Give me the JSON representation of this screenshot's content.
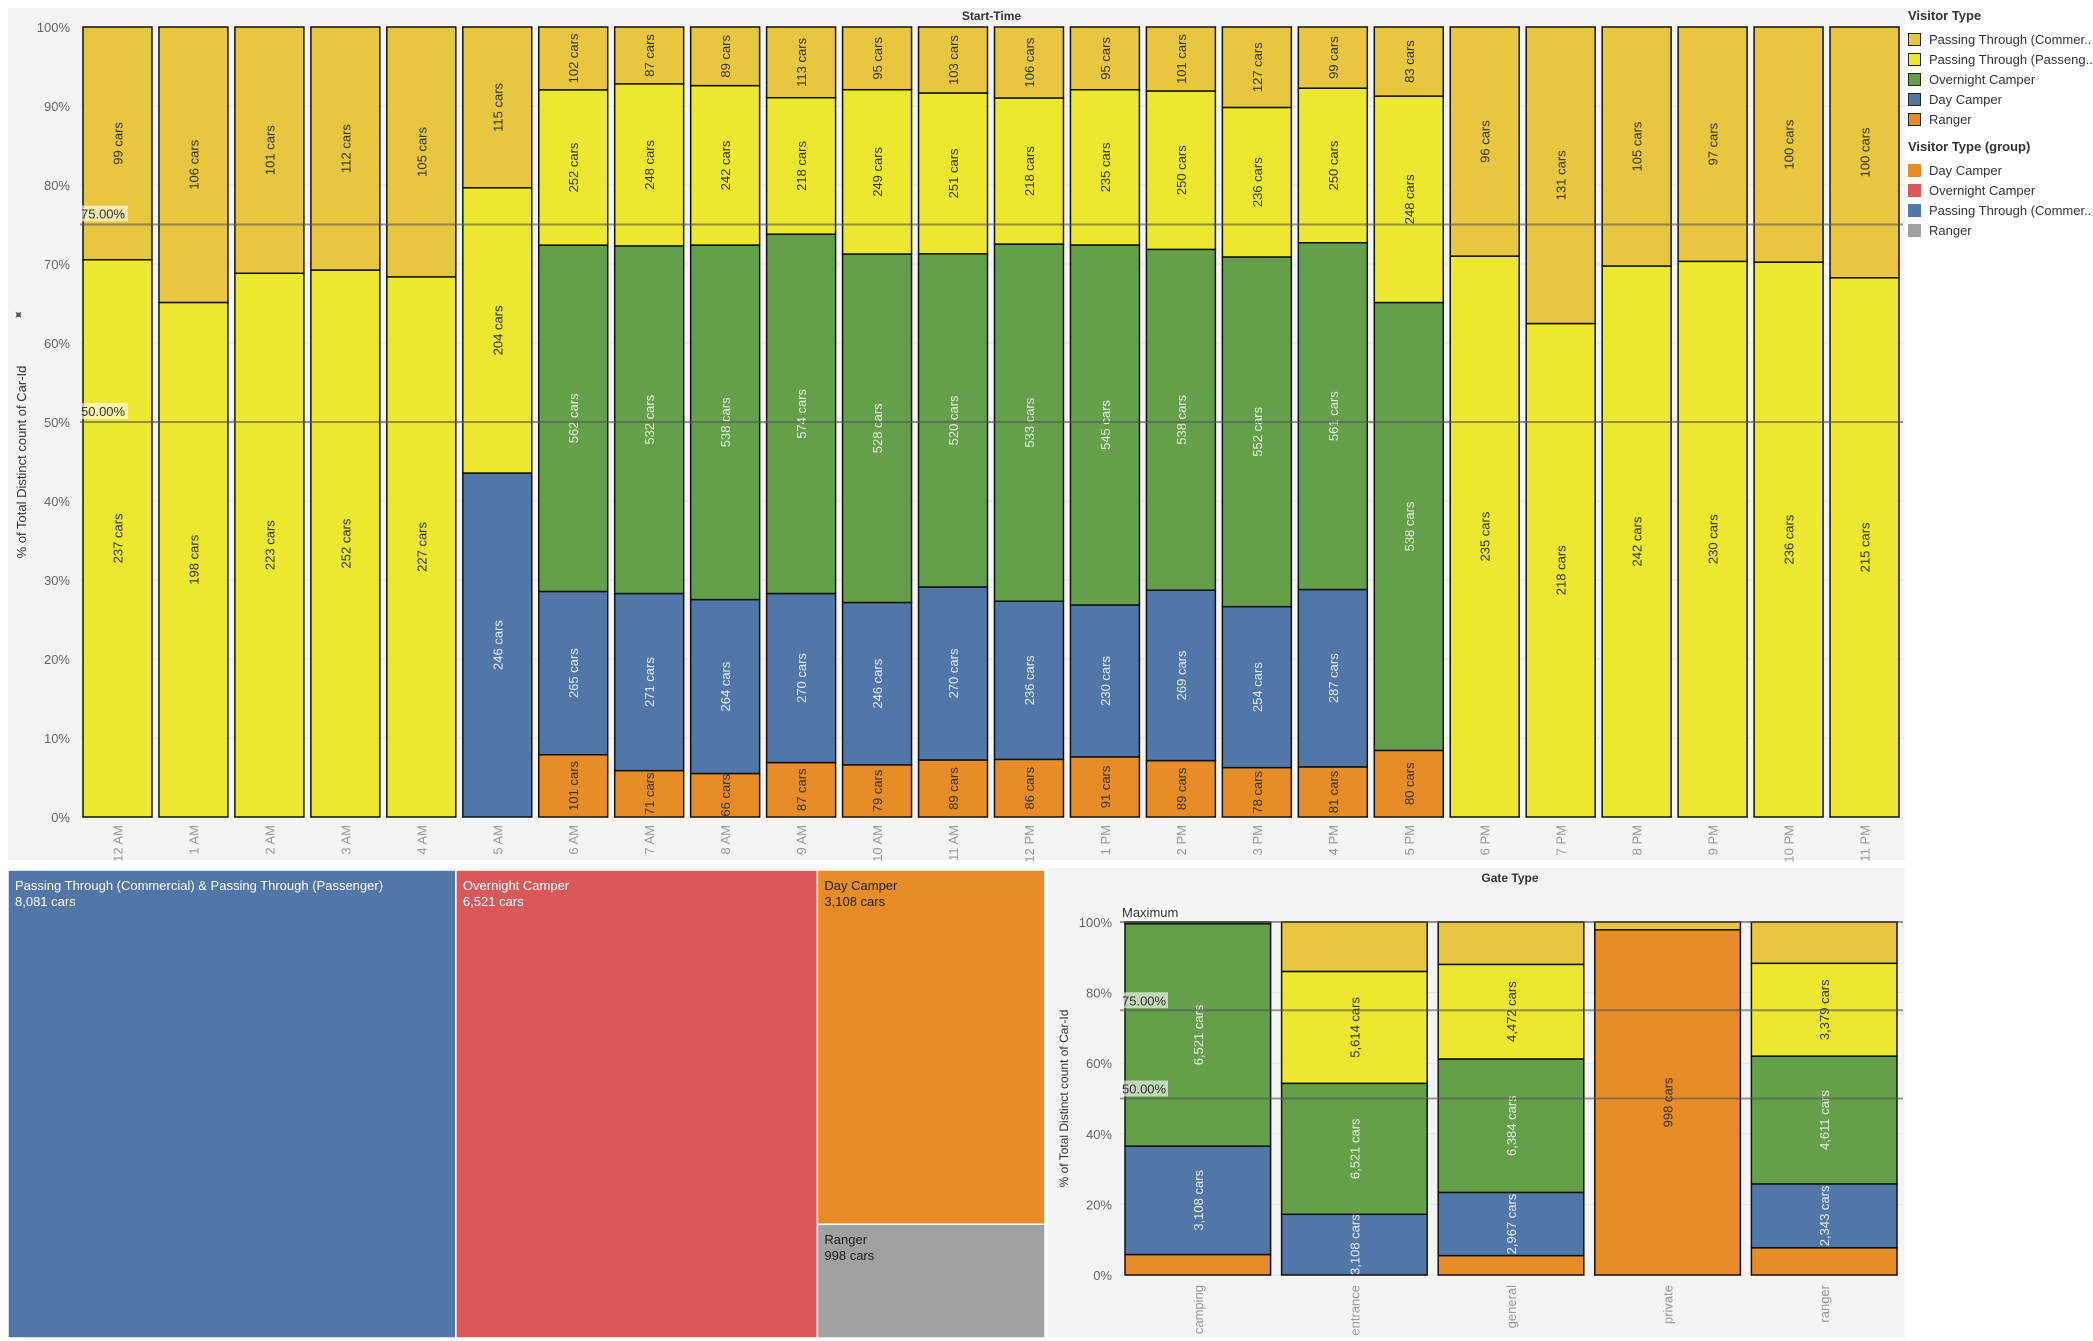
{
  "colors": {
    "commercial": "#e8c63f",
    "passenger": "#ece72f",
    "overnight": "#64a04a",
    "day": "#5177a8",
    "ranger": "#e78c27",
    "group_day": "#e78c27",
    "group_overnight": "#d9595b",
    "group_passing": "#5177a8",
    "group_ranger": "#a0a0a0"
  },
  "legend": {
    "visitor_type": {
      "title": "Visitor Type",
      "items": [
        {
          "label": "Passing Through (Commer..",
          "color": "#e8c63f"
        },
        {
          "label": "Passing Through (Passeng..",
          "color": "#ece72f"
        },
        {
          "label": "Overnight Camper",
          "color": "#64a04a"
        },
        {
          "label": "Day Camper",
          "color": "#5177a8"
        },
        {
          "label": "Ranger",
          "color": "#e78c27"
        }
      ]
    },
    "visitor_type_group": {
      "title": "Visitor Type (group)",
      "items": [
        {
          "label": "Day Camper",
          "color": "#e78c27"
        },
        {
          "label": "Overnight Camper",
          "color": "#d9595b"
        },
        {
          "label": "Passing Through (Commer..",
          "color": "#5177a8"
        },
        {
          "label": "Ranger",
          "color": "#a0a0a0"
        }
      ]
    }
  },
  "chart_data": [
    {
      "type": "bar",
      "stacked": "percent",
      "title": "Start-Time",
      "ylabel": "% of Total Distinct count of Car-Id",
      "ylim": [
        0,
        100
      ],
      "yticks": [
        "0%",
        "10%",
        "20%",
        "30%",
        "40%",
        "50%",
        "60%",
        "70%",
        "80%",
        "90%",
        "100%"
      ],
      "reference_lines": [
        {
          "value": 75,
          "label": "75.00%"
        },
        {
          "value": 50,
          "label": "50.00%"
        }
      ],
      "label_suffix": " cars",
      "categories": [
        "12 AM",
        "1 AM",
        "2 AM",
        "3 AM",
        "4 AM",
        "5 AM",
        "6 AM",
        "7 AM",
        "8 AM",
        "9 AM",
        "10 AM",
        "11 AM",
        "12 PM",
        "1 PM",
        "2 PM",
        "3 PM",
        "4 PM",
        "5 PM",
        "6 PM",
        "7 PM",
        "8 PM",
        "9 PM",
        "10 PM",
        "11 PM"
      ],
      "series": [
        {
          "name": "Ranger",
          "key": "ranger",
          "values": [
            0,
            0,
            0,
            0,
            0,
            0,
            101,
            71,
            66,
            87,
            79,
            89,
            86,
            91,
            89,
            78,
            81,
            80,
            0,
            0,
            0,
            0,
            0,
            0
          ]
        },
        {
          "name": "Day Camper",
          "key": "day",
          "values": [
            0,
            0,
            0,
            0,
            0,
            246,
            265,
            271,
            264,
            270,
            246,
            270,
            236,
            230,
            269,
            254,
            287,
            0,
            0,
            0,
            0,
            0,
            0,
            0
          ]
        },
        {
          "name": "Overnight Camper",
          "key": "overnight",
          "values": [
            0,
            0,
            0,
            0,
            0,
            0,
            562,
            532,
            538,
            574,
            528,
            520,
            533,
            545,
            538,
            552,
            561,
            538,
            0,
            0,
            0,
            0,
            0,
            0
          ]
        },
        {
          "name": "Passing Through (Passenger)",
          "key": "passenger",
          "values": [
            237,
            198,
            223,
            252,
            227,
            204,
            252,
            248,
            242,
            218,
            249,
            251,
            218,
            235,
            250,
            236,
            250,
            248,
            235,
            218,
            242,
            230,
            236,
            215
          ]
        },
        {
          "name": "Passing Through (Commercial)",
          "key": "commercial",
          "values": [
            99,
            106,
            101,
            112,
            105,
            115,
            102,
            87,
            89,
            113,
            95,
            103,
            106,
            95,
            101,
            127,
            99,
            83,
            96,
            131,
            105,
            97,
            100,
            100
          ]
        }
      ]
    },
    {
      "type": "treemap",
      "items": [
        {
          "name": "Passing Through (Commercial) & Passing Through (Passenger)",
          "value": 8081,
          "label": "8,081 cars",
          "key": "group_passing"
        },
        {
          "name": "Overnight Camper",
          "value": 6521,
          "label": "6,521 cars",
          "key": "group_overnight"
        },
        {
          "name": "Day Camper",
          "value": 3108,
          "label": "3,108 cars",
          "key": "group_day"
        },
        {
          "name": "Ranger",
          "value": 998,
          "label": "998 cars",
          "key": "group_ranger"
        }
      ]
    },
    {
      "type": "bar",
      "stacked": "percent",
      "title": "Gate Type",
      "ylabel": "% of Total Distinct count of Car-Id",
      "ylim": [
        0,
        100
      ],
      "yticks": [
        "0%",
        "20%",
        "40%",
        "60%",
        "80%",
        "100%"
      ],
      "reference_lines": [
        {
          "value": 100,
          "label": "Maximum"
        },
        {
          "value": 75,
          "label": "75.00%"
        },
        {
          "value": 50,
          "label": "50.00%"
        }
      ],
      "categories": [
        "camping",
        "entrance",
        "general",
        "private",
        "ranger"
      ],
      "series": [
        {
          "name": "Ranger",
          "key": "ranger",
          "percent": [
            5.8,
            0,
            5.5,
            97.8,
            7.7
          ],
          "labels": [
            null,
            null,
            null,
            "998 cars",
            null
          ]
        },
        {
          "name": "Day Camper",
          "key": "day",
          "percent": [
            30.7,
            17.2,
            17.9,
            0,
            18.1
          ],
          "labels": [
            "3,108 cars",
            "3,108 cars",
            "2,967 cars",
            null,
            "2,343 cars"
          ]
        },
        {
          "name": "Overnight Camper",
          "key": "overnight",
          "percent": [
            63.0,
            37.1,
            37.8,
            0,
            36.2
          ],
          "labels": [
            "6,521 cars",
            "6,521 cars",
            "6,384 cars",
            null,
            "4,611 cars"
          ]
        },
        {
          "name": "Passing Through (Passenger)",
          "key": "passenger",
          "percent": [
            0,
            31.7,
            26.8,
            0,
            26.3
          ],
          "labels": [
            null,
            "5,614 cars",
            "4,472 cars",
            null,
            "3,379 cars"
          ]
        },
        {
          "name": "Passing Through (Commercial)",
          "key": "commercial",
          "percent": [
            0.5,
            14.0,
            12.0,
            2.2,
            11.7
          ],
          "labels": [
            null,
            null,
            null,
            null,
            null
          ]
        }
      ]
    }
  ]
}
